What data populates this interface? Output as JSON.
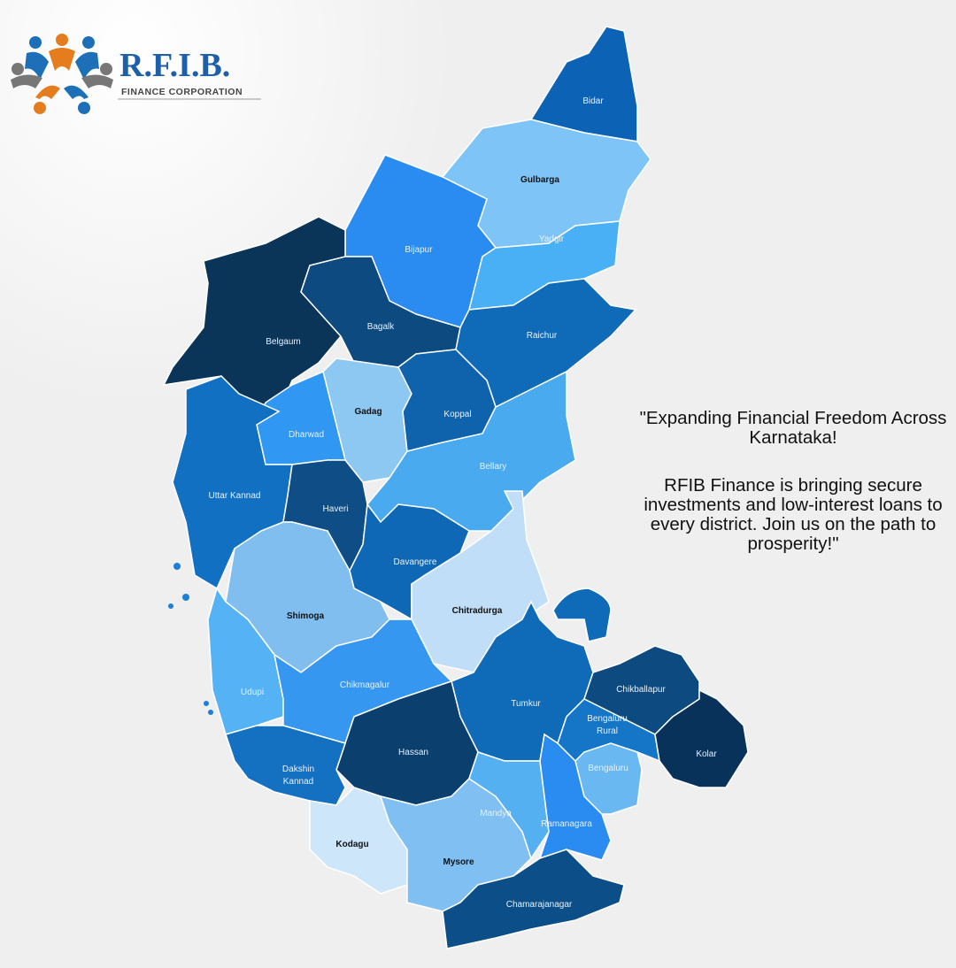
{
  "logo": {
    "name": "R.F.I.B.",
    "tagline": "FINANCE CORPORATION"
  },
  "map": {
    "districts": [
      {
        "label": "Bidar"
      },
      {
        "label": "Gulbarga"
      },
      {
        "label": "Bijapur"
      },
      {
        "label": "Yadgir"
      },
      {
        "label": "Belgaum"
      },
      {
        "label": "Bagalk"
      },
      {
        "label": "Raichur"
      },
      {
        "label": "Gadag"
      },
      {
        "label": "Dharwad"
      },
      {
        "label": "Koppal"
      },
      {
        "label": "Bellary"
      },
      {
        "label": "Uttar Kannad"
      },
      {
        "label": "Haveri"
      },
      {
        "label": "Davangere"
      },
      {
        "label": "Shimoga"
      },
      {
        "label": "Chitradurga"
      },
      {
        "label": "Udupi"
      },
      {
        "label": "Chikmagalur"
      },
      {
        "label": "Tumkur"
      },
      {
        "label": "Hassan"
      },
      {
        "label": "Dakshin Kannad"
      },
      {
        "label": "Kodagu"
      },
      {
        "label": "Mysore"
      },
      {
        "label": "Mandya"
      },
      {
        "label": "Ramanagara"
      },
      {
        "label": "Chamarajanagar"
      },
      {
        "label": "Chikballapur"
      },
      {
        "label": "Bengaluru Rural"
      },
      {
        "label": "Bengaluru"
      },
      {
        "label": "Kolar"
      }
    ]
  },
  "message": {
    "headline": "\"Expanding Financial Freedom Across Karnataka!",
    "body": "RFIB Finance is bringing secure investments and low-interest loans to every district. Join us on the path to prosperity!\""
  }
}
